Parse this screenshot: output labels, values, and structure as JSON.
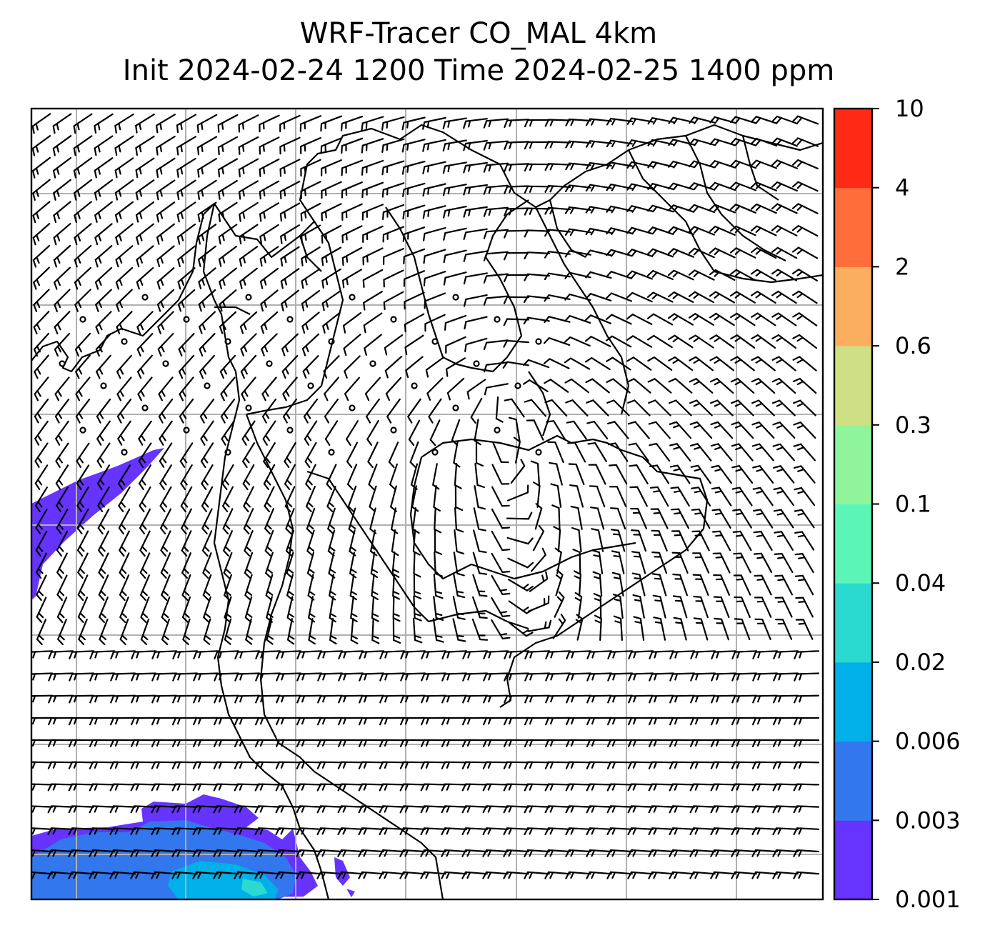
{
  "title": {
    "line1": "WRF-Tracer CO_MAL 4km",
    "line2": "Init 2024-02-24 1200 Time 2024-02-25 1400 ppm"
  },
  "colorbar": {
    "levels": [
      "0.001",
      "0.003",
      "0.006",
      "0.02",
      "0.04",
      "0.1",
      "0.3",
      "0.6",
      "2",
      "4",
      "10"
    ],
    "colors": [
      "#6633ff",
      "#3377ee",
      "#00b0e8",
      "#2ad9d0",
      "#5cf5b8",
      "#90f59a",
      "#cfdf84",
      "#fcae5f",
      "#ff6e3a",
      "#ff2a16"
    ]
  },
  "map": {
    "field": "CO_MAL tracer concentration",
    "overlay": "wind barbs",
    "background": "#ffffff",
    "gridline_color": "#b0b0b0",
    "coastline_color": "#000000"
  }
}
